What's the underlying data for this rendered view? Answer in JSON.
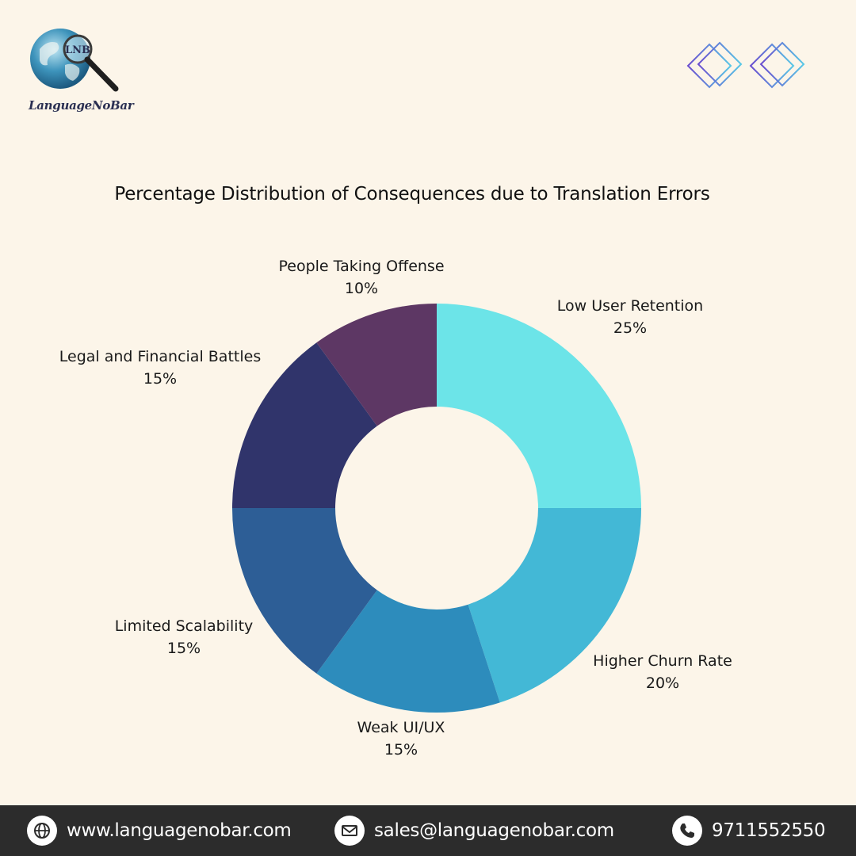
{
  "brand": {
    "name": "LanguageNoBar",
    "badge": "LNB"
  },
  "chart_data": {
    "type": "pie",
    "variant": "donut",
    "title": "Percentage Distribution of Consequences due to Translation Errors",
    "slices": [
      {
        "label": "Low User Retention",
        "value": 25,
        "display": "25%",
        "color": "#6ce4e8"
      },
      {
        "label": "Higher Churn Rate",
        "value": 20,
        "display": "20%",
        "color": "#43b8d6"
      },
      {
        "label": "Weak UI/UX",
        "value": 15,
        "display": "15%",
        "color": "#2d8cbc"
      },
      {
        "label": "Limited Scalability",
        "value": 15,
        "display": "15%",
        "color": "#2d5e96"
      },
      {
        "label": "Legal and Financial Battles",
        "value": 15,
        "display": "15%",
        "color": "#30346b"
      },
      {
        "label": "People Taking Offense",
        "value": 10,
        "display": "10%",
        "color": "#5d3764"
      }
    ],
    "start_angle_deg": 0,
    "direction": "clockwise",
    "legend": "none"
  },
  "footer": {
    "website": "www.languagenobar.com",
    "email": "sales@languagenobar.com",
    "phone": "9711552550",
    "icons": [
      "globe-icon",
      "mail-icon",
      "phone-icon"
    ]
  }
}
